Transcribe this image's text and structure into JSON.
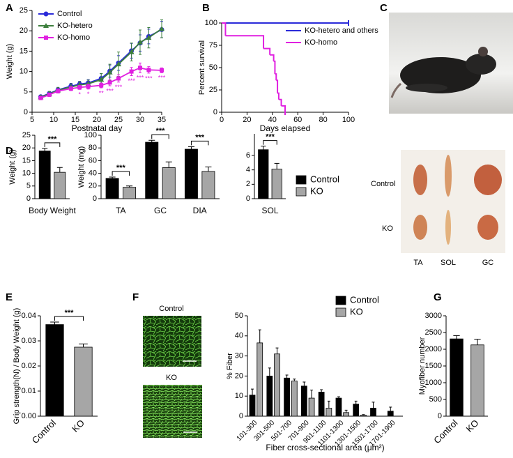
{
  "chart_data": [
    {
      "type": "line",
      "label": "A",
      "x_label": "Postnatal day",
      "y_label": "Weight (g)",
      "x": [
        7,
        9,
        11,
        14,
        16,
        18,
        21,
        23,
        25,
        28,
        30,
        32,
        35
      ],
      "xlim": [
        5,
        35
      ],
      "xticks": [
        5,
        10,
        15,
        20,
        25,
        30,
        35
      ],
      "ylim": [
        0,
        25
      ],
      "yticks": [
        0,
        5,
        10,
        15,
        20,
        25
      ],
      "series": [
        {
          "name": "Control",
          "color": "#2b2bd9",
          "marker": "circle",
          "values": [
            3.8,
            4.6,
            5.5,
            6.4,
            6.9,
            7.2,
            8.3,
            10.1,
            12.1,
            15.1,
            17.0,
            18.6,
            20.3
          ],
          "errors": [
            0.4,
            0.5,
            0.6,
            0.7,
            0.7,
            0.8,
            1.2,
            1.5,
            1.8,
            1.8,
            2.0,
            1.8,
            2.0
          ]
        },
        {
          "name": "KO-hetero",
          "color": "#3d7f3d",
          "marker": "triangle",
          "values": [
            3.7,
            4.5,
            5.4,
            6.2,
            6.7,
            7.0,
            8.0,
            9.8,
            11.8,
            14.8,
            17.2,
            18.3,
            20.5
          ],
          "errors": [
            0.5,
            0.6,
            0.7,
            0.8,
            0.8,
            0.9,
            1.5,
            2.0,
            3.0,
            2.2,
            3.0,
            2.5,
            2.2
          ]
        },
        {
          "name": "KO-homo",
          "color": "#e020e0",
          "marker": "square",
          "values": [
            3.5,
            4.3,
            5.2,
            5.8,
            6.1,
            6.3,
            6.6,
            7.3,
            8.3,
            10.0,
            10.9,
            10.4,
            10.3
          ],
          "errors": [
            0.3,
            0.4,
            0.5,
            0.5,
            0.5,
            0.6,
            0.6,
            0.8,
            0.9,
            1.0,
            1.2,
            0.8,
            0.6
          ]
        }
      ],
      "significance": [
        null,
        null,
        null,
        null,
        "*",
        "*",
        "**",
        "***",
        "***",
        "***",
        "***",
        "***",
        "***"
      ]
    },
    {
      "type": "line",
      "step": true,
      "label": "B",
      "x_label": "Days elapsed",
      "y_label": "Percent survival",
      "xlim": [
        0,
        100
      ],
      "xticks": [
        0,
        20,
        40,
        60,
        80,
        100
      ],
      "ylim": [
        0,
        100
      ],
      "yticks": [
        0,
        25,
        50,
        75,
        100
      ],
      "series": [
        {
          "name": "KO-hetero and others",
          "color": "#2b2bd9",
          "x": [
            0,
            100
          ],
          "values": [
            100,
            100
          ]
        },
        {
          "name": "KO-homo",
          "color": "#e020e0",
          "x": [
            0,
            3,
            33,
            38,
            41,
            42,
            43,
            44,
            45,
            47,
            50
          ],
          "values": [
            100,
            85.7,
            71.4,
            64.3,
            57.1,
            42.9,
            35.7,
            21.4,
            14.3,
            7.1,
            0
          ]
        }
      ]
    },
    {
      "type": "image",
      "label": "C"
    },
    {
      "type": "bar",
      "label": "D",
      "x_label": "Body Weight",
      "y_label": "Weight (g)",
      "ylim": [
        0,
        25
      ],
      "yticks": [
        0,
        5,
        10,
        15,
        20,
        25
      ],
      "series": [
        {
          "color": "#000000",
          "values": [
            18.8
          ],
          "errors": [
            1.0
          ]
        },
        {
          "color": "#a6a6a6",
          "values": [
            10.4
          ],
          "errors": [
            1.9
          ]
        }
      ],
      "significance": [
        "***"
      ]
    },
    {
      "type": "bar",
      "y_label": "Weight (mg)",
      "categories": [
        "TA",
        "GC",
        "DIA"
      ],
      "ylim": [
        0,
        100
      ],
      "yticks": [
        0,
        20,
        40,
        60,
        80,
        100
      ],
      "series": [
        {
          "color": "#000000",
          "values": [
            32,
            89,
            78
          ],
          "errors": [
            2,
            3,
            4
          ]
        },
        {
          "color": "#a6a6a6",
          "values": [
            18,
            49,
            43
          ],
          "errors": [
            2,
            9,
            7
          ]
        }
      ],
      "significance": [
        "***",
        "***",
        "***"
      ]
    },
    {
      "type": "bar",
      "categories": [
        "SOL"
      ],
      "ylim": [
        0,
        9
      ],
      "yticks": [
        0,
        2,
        4,
        6
      ],
      "series": [
        {
          "name": "Control",
          "color": "#000000",
          "values": [
            6.8
          ],
          "errors": [
            0.5
          ]
        },
        {
          "name": "KO",
          "color": "#a6a6a6",
          "values": [
            4.1
          ],
          "errors": [
            0.8
          ]
        }
      ],
      "significance": [
        "***"
      ]
    },
    {
      "type": "image",
      "texts": [
        "Control",
        "KO",
        "TA",
        "SOL",
        "GC"
      ]
    },
    {
      "type": "bar",
      "label": "E",
      "y_label": "Grip strength(N) / Body Weight (g)",
      "categories": [
        "Control",
        "KO"
      ],
      "ylim": [
        0,
        0.04
      ],
      "yticks": [
        {
          "value": 0,
          "label": "0.00"
        },
        0.01,
        0.02,
        0.03,
        0.04
      ],
      "series": [
        {
          "colors": [
            "#000000",
            "#a6a6a6"
          ],
          "values": [
            0.0365,
            0.0275
          ],
          "errors": [
            0.001,
            0.0013
          ]
        }
      ],
      "significance": "***"
    },
    {
      "type": "image",
      "label": "F",
      "texts": [
        "Control",
        "KO"
      ]
    },
    {
      "type": "bar",
      "x_label": "Fiber cross-sectional area (μm²)",
      "y_label": "% Fiber",
      "categories": [
        "101-300",
        "301-500",
        "501-700",
        "701-900",
        "901-1100",
        "1101-1300",
        "1301-1500",
        "1501-1700",
        "1701-1900"
      ],
      "ylim": [
        0,
        50
      ],
      "yticks": [
        0,
        10,
        20,
        30,
        40,
        50
      ],
      "series": [
        {
          "name": "Control",
          "color": "#000000",
          "values": [
            10.5,
            20,
            19,
            15,
            12,
            9,
            6,
            4,
            2.5
          ],
          "errors": [
            3,
            4,
            1.5,
            2,
            1.2,
            0.7,
            1.5,
            3,
            2
          ]
        },
        {
          "name": "KO",
          "color": "#a6a6a6",
          "values": [
            36.5,
            31,
            17.5,
            9,
            4,
            1.8,
            0.5,
            0,
            0
          ],
          "errors": [
            6.5,
            3,
            1,
            4,
            3.5,
            1.2,
            0.3,
            0,
            0
          ]
        }
      ]
    },
    {
      "type": "bar",
      "label": "G",
      "y_label": "Myofiber number",
      "categories": [
        "Control",
        "KO"
      ],
      "ylim": [
        0,
        3000
      ],
      "yticks": [
        0,
        500,
        1000,
        1500,
        2000,
        2500,
        3000
      ],
      "series": [
        {
          "colors": [
            "#000000",
            "#a6a6a6"
          ],
          "values": [
            2310,
            2130
          ],
          "errors": [
            100,
            170
          ]
        }
      ]
    }
  ]
}
